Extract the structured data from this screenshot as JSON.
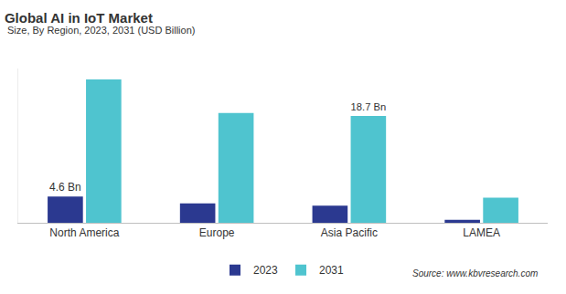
{
  "chart_data": {
    "type": "bar",
    "title": "Global AI in IoT Market",
    "subtitle": "Size, By Region, 2023, 2031 (USD Billion)",
    "categories": [
      "North America",
      "Europe",
      "Asia Pacific",
      "LAMEA"
    ],
    "series": [
      {
        "name": "2023",
        "color": "#2b3990",
        "values": [
          4.6,
          3.4,
          3.0,
          0.5
        ],
        "value_labels": [
          "4.6 Bn",
          null,
          null,
          null
        ]
      },
      {
        "name": "2031",
        "color": "#4fc4cf",
        "values": [
          25.1,
          19.2,
          18.7,
          4.4
        ],
        "value_labels": [
          null,
          null,
          "18.7 Bn",
          null
        ]
      }
    ],
    "ylim": [
      0,
      27
    ],
    "data_labels": true,
    "tick_labels": "x",
    "legend": "bottom",
    "source": "Source: www.kbvresearch.com"
  }
}
